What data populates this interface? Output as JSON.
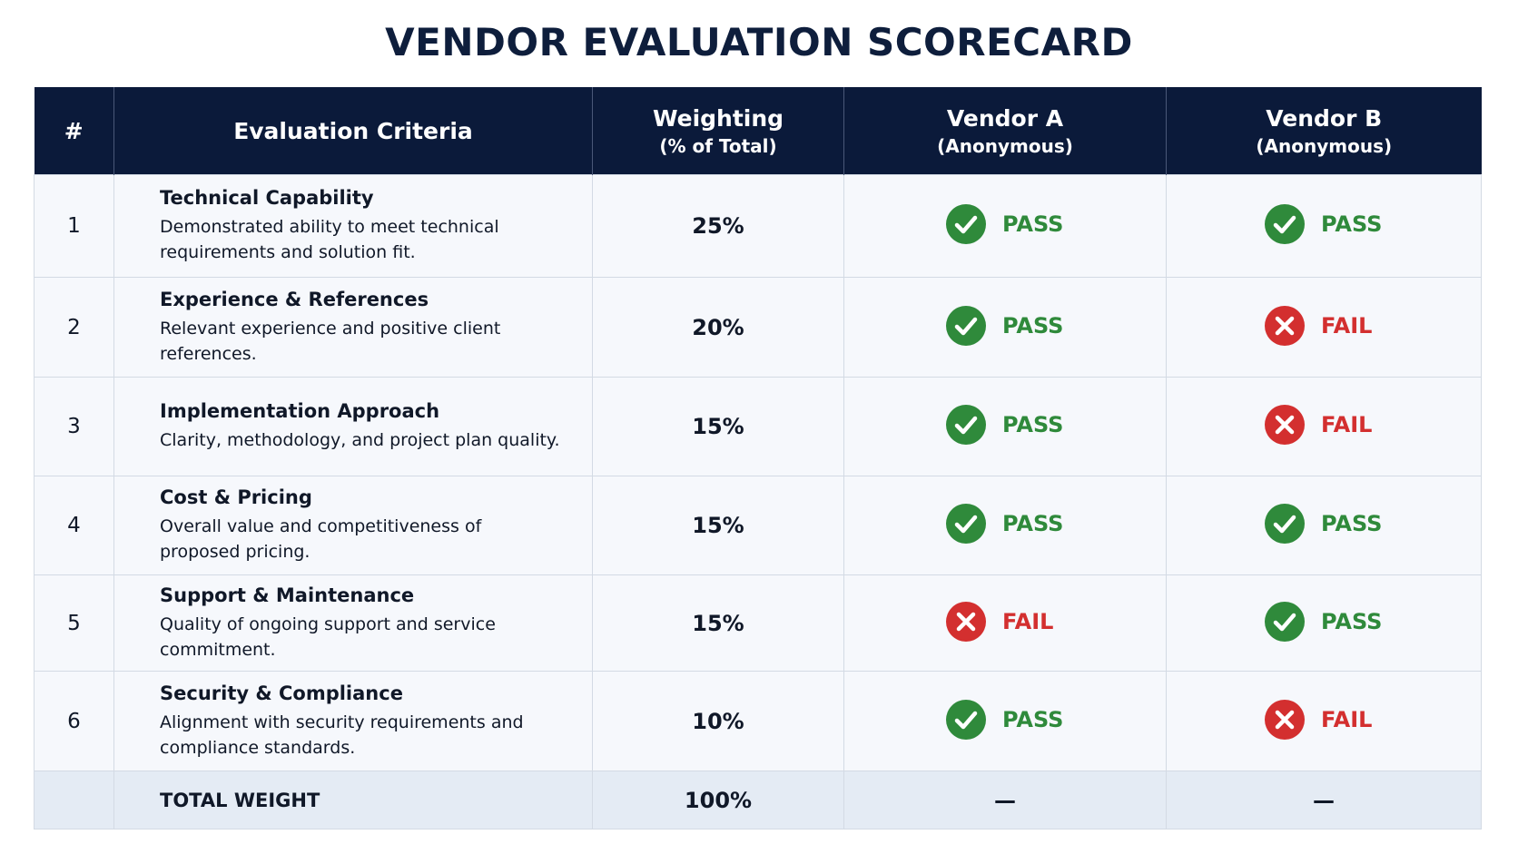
{
  "title": "VENDOR EVALUATION SCORECARD",
  "table": {
    "headers": {
      "number": "#",
      "criteria": "Evaluation Criteria",
      "weighting": {
        "label": "Weighting",
        "sub": "(% of Total)"
      },
      "vendor_a": {
        "label": "Vendor A",
        "sub": "(Anonymous)"
      },
      "vendor_b": {
        "label": "Vendor B",
        "sub": "(Anonymous)"
      }
    },
    "rows": [
      {
        "number": "1",
        "criteria": "Technical Capability",
        "description": "Demonstrated ability to meet technical requirements and solution fit.",
        "weighting": "25%",
        "vendor_a": {
          "result": "PASS",
          "pass": true
        },
        "vendor_b": {
          "result": "PASS",
          "pass": true
        }
      },
      {
        "number": "2",
        "criteria": "Experience & References",
        "description": "Relevant experience and positive client references.",
        "weighting": "20%",
        "vendor_a": {
          "result": "PASS",
          "pass": true
        },
        "vendor_b": {
          "result": "FAIL",
          "pass": false
        }
      },
      {
        "number": "3",
        "criteria": "Implementation Approach",
        "description": "Clarity, methodology, and project plan quality.",
        "weighting": "15%",
        "vendor_a": {
          "result": "PASS",
          "pass": true
        },
        "vendor_b": {
          "result": "FAIL",
          "pass": false
        }
      },
      {
        "number": "4",
        "criteria": "Cost & Pricing",
        "description": "Overall value and competitiveness of proposed pricing.",
        "weighting": "15%",
        "vendor_a": {
          "result": "PASS",
          "pass": true
        },
        "vendor_b": {
          "result": "PASS",
          "pass": true
        }
      },
      {
        "number": "5",
        "criteria": "Support & Maintenance",
        "description": "Quality of ongoing support and service commitment.",
        "weighting": "15%",
        "vendor_a": {
          "result": "FAIL",
          "pass": false
        },
        "vendor_b": {
          "result": "PASS",
          "pass": true
        }
      },
      {
        "number": "6",
        "criteria": "Security & Compliance",
        "description": "Alignment with security requirements and compliance standards.",
        "weighting": "10%",
        "vendor_a": {
          "result": "PASS",
          "pass": true
        },
        "vendor_b": {
          "result": "FAIL",
          "pass": false
        }
      }
    ],
    "total": {
      "label": "TOTAL WEIGHT",
      "weighting": "100%",
      "vendor_a": "—",
      "vendor_b": "—"
    }
  }
}
